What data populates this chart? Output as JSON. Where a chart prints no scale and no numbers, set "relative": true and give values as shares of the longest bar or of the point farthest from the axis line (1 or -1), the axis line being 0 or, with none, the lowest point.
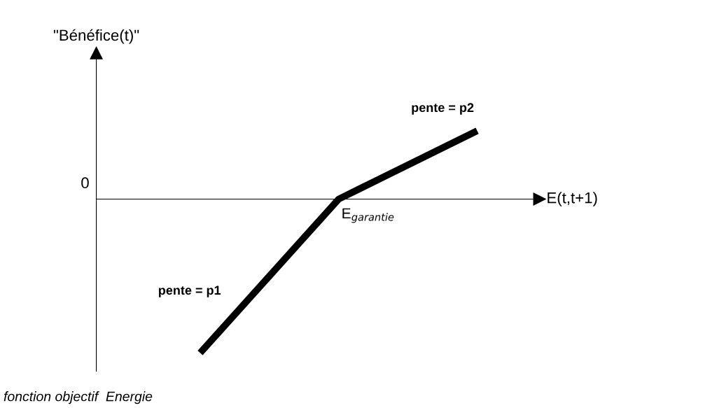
{
  "chart_data": {
    "type": "line",
    "relative": true,
    "xlabel": "E(t,t+1)",
    "categories": [
      null,
      null,
      null
    ],
    "series": [
      {
        "color": "#000000",
        "values": [
          -1,
          0,
          0.444
        ]
      }
    ],
    "annotations": [
      "pente = p1",
      "pente = p2",
      "0",
      "fonction objectif  Energie",
      "E$_{garantie}$",
      "\"Bénéfice(t)\""
    ],
    "marker": "none",
    "line_style": "solid"
  }
}
